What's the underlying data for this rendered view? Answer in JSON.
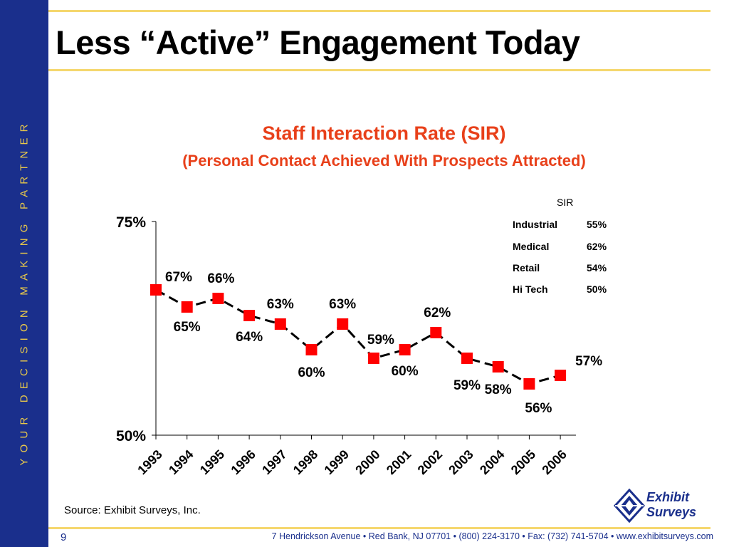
{
  "sidebar": {
    "tagline": "YOUR DECISION MAKING PARTNER"
  },
  "slide": {
    "title": "Less “Active” Engagement Today",
    "source": "Source: Exhibit Surveys, Inc.",
    "page_number": "9",
    "footer": "7 Hendrickson Avenue   •   Red Bank, NJ 07701   •   (800) 224-3170   •   Fax: (732) 741-5704   •   www.exhibitsurveys.com"
  },
  "logo": {
    "line1": "Exhibit",
    "line2": "Surveys"
  },
  "chart_data": {
    "type": "line",
    "title": "Staff Interaction Rate (SIR)",
    "subtitle": "(Personal Contact Achieved With Prospects Attracted)",
    "categories": [
      "1993",
      "1994",
      "1995",
      "1996",
      "1997",
      "1998",
      "1999",
      "2000",
      "2001",
      "2002",
      "2003",
      "2004",
      "2005",
      "2006"
    ],
    "values": [
      67,
      65,
      66,
      64,
      63,
      60,
      63,
      59,
      60,
      62,
      59,
      58,
      56,
      57
    ],
    "data_labels": [
      "67%",
      "65%",
      "66%",
      "64%",
      "63%",
      "60%",
      "63%",
      "59%",
      "60%",
      "62%",
      "59%",
      "58%",
      "56%",
      "57%"
    ],
    "ylim": [
      50,
      75
    ],
    "ytick_labels": [
      "50%",
      "75%"
    ],
    "line_color": "#000000",
    "line_style": "dashed",
    "marker_color": "#ff0000",
    "grid": false,
    "legend_table": {
      "header": "SIR",
      "rows": [
        {
          "name": "Industrial",
          "value": "55%"
        },
        {
          "name": "Medical",
          "value": "62%"
        },
        {
          "name": "Retail",
          "value": "54%"
        },
        {
          "name": "Hi Tech",
          "value": "50%"
        }
      ]
    }
  }
}
